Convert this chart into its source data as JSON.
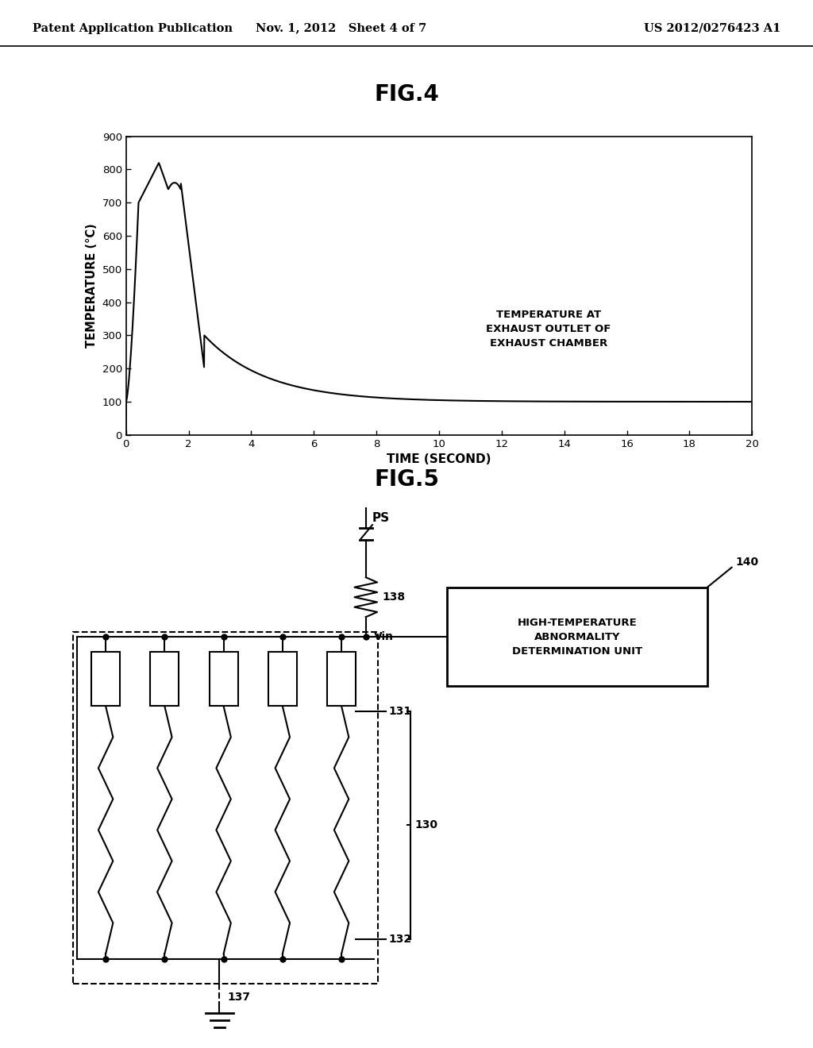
{
  "header_left": "Patent Application Publication",
  "header_mid": "Nov. 1, 2012   Sheet 4 of 7",
  "header_right": "US 2012/0276423 A1",
  "fig4_title": "FIG.4",
  "fig4_ylabel": "TEMPERATURE (°C)",
  "fig4_xlabel": "TIME (SECOND)",
  "fig4_annotation": "TEMPERATURE AT\nEXHAUST OUTLET OF\nEXHAUST CHAMBER",
  "fig4_xlim": [
    0,
    20
  ],
  "fig4_ylim": [
    0,
    900
  ],
  "fig4_xticks": [
    0,
    2,
    4,
    6,
    8,
    10,
    12,
    14,
    16,
    18,
    20
  ],
  "fig4_yticks": [
    0,
    100,
    200,
    300,
    400,
    500,
    600,
    700,
    800,
    900
  ],
  "fig5_title": "FIG.5",
  "label_PS": "PS",
  "label_138": "138",
  "label_Vin": "Vin",
  "label_140": "140",
  "label_box": "HIGH-TEMPERATURE\nABNORMALITY\nDETERMINATION UNIT",
  "label_131": "131",
  "label_132": "132",
  "label_130": "130",
  "label_137": "137",
  "bg_color": "#ffffff",
  "line_color": "#000000",
  "text_color": "#000000"
}
